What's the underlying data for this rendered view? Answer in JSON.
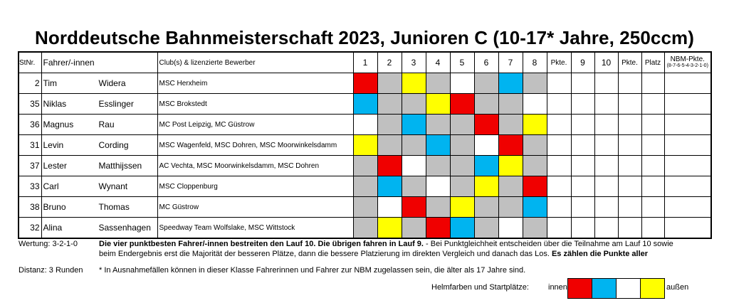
{
  "title": "Norddeutsche Bahnmeisterschaft 2023, Junioren C (10-17* Jahre, 250ccm)",
  "headers": {
    "stnr": "StNr.",
    "rider": "Fahrer/-innen",
    "club": "Club(s) & lizenzierte Bewerber",
    "heats": [
      "1",
      "2",
      "3",
      "4",
      "5",
      "6",
      "7",
      "8"
    ],
    "pkte1": "Pkte.",
    "h9": "9",
    "h10": "10",
    "pkte2": "Pkte.",
    "platz": "Platz",
    "nbm": "NBM-Pkte.",
    "nbm_sub": "(8-7-6-5-4-3-2-1-0)"
  },
  "colors": {
    "red": "#f00000",
    "blue": "#00b4f0",
    "yellow": "#ffff00",
    "gray": "#c0c0c0",
    "white": "#ffffff"
  },
  "rows": [
    {
      "nr": "2",
      "first": "Tim",
      "last": "Widera",
      "club": "MSC Herxheim",
      "cells": [
        "red",
        "gray",
        "yellow",
        "gray",
        "white",
        "gray",
        "blue",
        "gray"
      ]
    },
    {
      "nr": "35",
      "first": "Niklas",
      "last": "Esslinger",
      "club": "MSC Brokstedt",
      "cells": [
        "blue",
        "gray",
        "gray",
        "yellow",
        "red",
        "gray",
        "gray",
        "white"
      ]
    },
    {
      "nr": "36",
      "first": "Magnus",
      "last": "Rau",
      "club": "MC Post Leipzig, MC Güstrow",
      "cells": [
        "white",
        "gray",
        "blue",
        "gray",
        "gray",
        "red",
        "gray",
        "yellow"
      ]
    },
    {
      "nr": "31",
      "first": "Levin",
      "last": "Cording",
      "club": "MSC Wagenfeld, MSC Dohren, MSC Moorwinkelsdamm",
      "cells": [
        "yellow",
        "gray",
        "gray",
        "blue",
        "gray",
        "white",
        "red",
        "gray"
      ]
    },
    {
      "nr": "37",
      "first": "Lester",
      "last": "Matthijssen",
      "club": "AC Vechta, MSC Moorwinkelsdamm, MSC Dohren",
      "cells": [
        "gray",
        "red",
        "white",
        "gray",
        "gray",
        "blue",
        "yellow",
        "gray"
      ]
    },
    {
      "nr": "33",
      "first": "Carl",
      "last": "Wynant",
      "club": "MSC Cloppenburg",
      "cells": [
        "gray",
        "blue",
        "gray",
        "white",
        "gray",
        "yellow",
        "gray",
        "red"
      ]
    },
    {
      "nr": "38",
      "first": "Bruno",
      "last": "Thomas",
      "club": "MC Güstrow",
      "cells": [
        "gray",
        "white",
        "red",
        "gray",
        "yellow",
        "gray",
        "gray",
        "blue"
      ]
    },
    {
      "nr": "32",
      "first": "Alina",
      "last": "Sassenhagen",
      "club": "Speedway Team Wolfslake, MSC Wittstock",
      "cells": [
        "gray",
        "yellow",
        "gray",
        "red",
        "blue",
        "gray",
        "white",
        "gray"
      ]
    }
  ],
  "footer": {
    "wertung_label": "Wertung: 3-2-1-0",
    "wertung_bold": "Die vier punktbesten Fahrer/-innen bestreiten den Lauf 10. Die übrigen fahren in Lauf 9.",
    "wertung_text": " - Bei Punktgleichheit entscheiden über die Teilnahme am Lauf 10 sowie",
    "line2_text": "beim Endergebnis erst die Majorität der besseren Plätze, dann die bessere Platzierung im direkten Vergleich und danach das Los. ",
    "line2_bold": "Es zählen die Punkte aller",
    "distanz": "Distanz: 3 Runden",
    "note": "* In Ausnahmefällen können in dieser Klasse Fahrerinnen und Fahrer zur NBM zugelassen sein, die älter als 17 Jahre sind.",
    "legend_label": "Helmfarben und Startplätze:",
    "legend_inner": "innen",
    "legend_outer": "außen",
    "legend_colors": [
      "red",
      "blue",
      "white",
      "yellow"
    ]
  }
}
